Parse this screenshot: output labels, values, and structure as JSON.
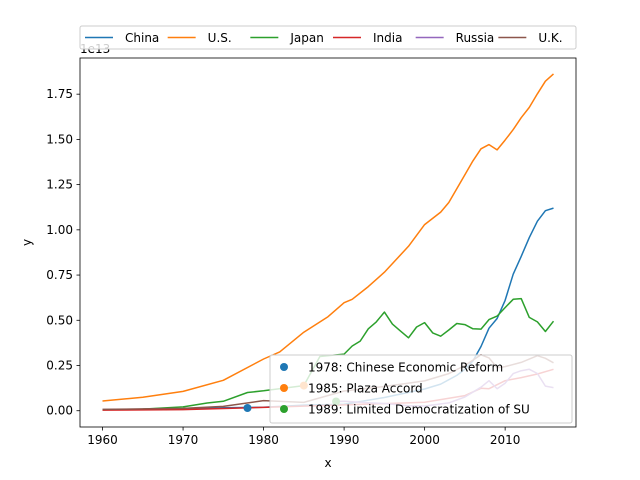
{
  "chart_data": {
    "type": "line",
    "xlabel": "x",
    "ylabel": "y",
    "offset_text": "1e13",
    "xlim": [
      1957.2,
      2018.8
    ],
    "ylim": [
      -900000000000.0,
      19500000000000.0
    ],
    "x_ticks": [
      1960,
      1970,
      1980,
      1990,
      2000,
      2010
    ],
    "y_ticks": [
      0.0,
      2500000000000.0,
      5000000000000.0,
      7500000000000.0,
      10000000000000.0,
      12500000000000.0,
      15000000000000.0,
      17500000000000.0
    ],
    "y_tick_labels": [
      "0.00",
      "0.25",
      "0.50",
      "0.75",
      "1.00",
      "1.25",
      "1.50",
      "1.75"
    ],
    "grid": false,
    "top_legend_placement": "top, above plot",
    "event_legend_placement": "lower-right",
    "series": [
      {
        "name": "China",
        "color": "#1f77b4",
        "x": [
          1960,
          1965,
          1970,
          1975,
          1980,
          1985,
          1990,
          1995,
          2000,
          2002,
          2004,
          2005,
          2006,
          2007,
          2008,
          2009,
          2010,
          2011,
          2012,
          2013,
          2014,
          2015,
          2016
        ],
        "y": [
          60000000000.0,
          70000000000.0,
          90000000000.0,
          160000000000.0,
          190000000000.0,
          310000000000.0,
          360000000000.0,
          730000000000.0,
          1200000000000.0,
          1470000000000.0,
          1950000000000.0,
          2290000000000.0,
          2750000000000.0,
          3550000000000.0,
          4560000000000.0,
          5100000000000.0,
          6100000000000.0,
          7550000000000.0,
          8530000000000.0,
          9570000000000.0,
          10480000000000.0,
          11060000000000.0,
          11200000000000.0
        ]
      },
      {
        "name": "U.S.",
        "color": "#ff7f0e",
        "x": [
          1960,
          1965,
          1970,
          1975,
          1980,
          1982,
          1985,
          1988,
          1990,
          1991,
          1993,
          1995,
          1998,
          2000,
          2002,
          2003,
          2005,
          2006,
          2007,
          2008,
          2009,
          2010,
          2011,
          2012,
          2013,
          2014,
          2015,
          2016
        ],
        "y": [
          540000000000.0,
          740000000000.0,
          1070000000000.0,
          1680000000000.0,
          2860000000000.0,
          3250000000000.0,
          4340000000000.0,
          5200000000000.0,
          5970000000000.0,
          6160000000000.0,
          6860000000000.0,
          7660000000000.0,
          9090000000000.0,
          10290000000000.0,
          10980000000000.0,
          11510000000000.0,
          13040000000000.0,
          13810000000000.0,
          14480000000000.0,
          14710000000000.0,
          14420000000000.0,
          14960000000000.0,
          15540000000000.0,
          16200000000000.0,
          16770000000000.0,
          17520000000000.0,
          18220000000000.0,
          18620000000000.0
        ]
      },
      {
        "name": "Japan",
        "color": "#2ca02c",
        "x": [
          1960,
          1965,
          1970,
          1973,
          1975,
          1978,
          1980,
          1985,
          1987,
          1990,
          1991,
          1992,
          1993,
          1994,
          1995,
          1996,
          1997,
          1998,
          1999,
          2000,
          2001,
          2002,
          2003,
          2004,
          2005,
          2006,
          2007,
          2008,
          2009,
          2010,
          2011,
          2012,
          2013,
          2014,
          2015,
          2016
        ],
        "y": [
          44000000000.0,
          91000000000.0,
          212000000000.0,
          425000000000.0,
          520000000000.0,
          1010000000000.0,
          1100000000000.0,
          1390000000000.0,
          3000000000000.0,
          3130000000000.0,
          3580000000000.0,
          3850000000000.0,
          4530000000000.0,
          4910000000000.0,
          5450000000000.0,
          4790000000000.0,
          4400000000000.0,
          4030000000000.0,
          4630000000000.0,
          4870000000000.0,
          4300000000000.0,
          4120000000000.0,
          4460000000000.0,
          4820000000000.0,
          4760000000000.0,
          4530000000000.0,
          4510000000000.0,
          5040000000000.0,
          5230000000000.0,
          5700000000000.0,
          6160000000000.0,
          6200000000000.0,
          5160000000000.0,
          4910000000000.0,
          4380000000000.0,
          4950000000000.0
        ]
      },
      {
        "name": "India",
        "color": "#d62728",
        "x": [
          1960,
          1970,
          1980,
          1990,
          2000,
          2005,
          2007,
          2008,
          2010,
          2012,
          2014,
          2016
        ],
        "y": [
          37000000000.0,
          62000000000.0,
          186000000000.0,
          320000000000.0,
          468000000000.0,
          834000000000.0,
          1240000000000.0,
          1220000000000.0,
          1660000000000.0,
          1830000000000.0,
          2030000000000.0,
          2290000000000.0
        ]
      },
      {
        "name": "Russia",
        "color": "#9467bd",
        "x": [
          1989,
          1990,
          1993,
          1995,
          1998,
          2000,
          2003,
          2005,
          2007,
          2008,
          2009,
          2010,
          2011,
          2012,
          2013,
          2014,
          2015,
          2016
        ],
        "y": [
          510000000000.0,
          520000000000.0,
          440000000000.0,
          400000000000.0,
          270000000000.0,
          260000000000.0,
          430000000000.0,
          760000000000.0,
          1300000000000.0,
          1660000000000.0,
          1220000000000.0,
          1520000000000.0,
          2050000000000.0,
          2210000000000.0,
          2290000000000.0,
          2060000000000.0,
          1360000000000.0,
          1280000000000.0
        ]
      },
      {
        "name": "U.K.",
        "color": "#8c564b",
        "x": [
          1960,
          1965,
          1970,
          1975,
          1980,
          1985,
          1990,
          1995,
          2000,
          2003,
          2005,
          2007,
          2008,
          2009,
          2010,
          2012,
          2014,
          2015,
          2016
        ],
        "y": [
          72000000000.0,
          100000000000.0,
          130000000000.0,
          240000000000.0,
          560000000000.0,
          460000000000.0,
          1090000000000.0,
          1340000000000.0,
          1650000000000.0,
          2050000000000.0,
          2500000000000.0,
          3090000000000.0,
          2920000000000.0,
          2380000000000.0,
          2440000000000.0,
          2670000000000.0,
          3040000000000.0,
          2900000000000.0,
          2650000000000.0
        ]
      }
    ],
    "events": [
      {
        "label": "1978: Chinese Economic Reform",
        "x": 1978,
        "y": 150000000000.0,
        "color": "#1f77b4"
      },
      {
        "label": "1985: Plaza Accord",
        "x": 1985,
        "y": 1390000000000.0,
        "color": "#ff7f0e"
      },
      {
        "label": "1989: Limited Democratization of SU",
        "x": 1989,
        "y": 510000000000.0,
        "color": "#2ca02c"
      }
    ]
  }
}
